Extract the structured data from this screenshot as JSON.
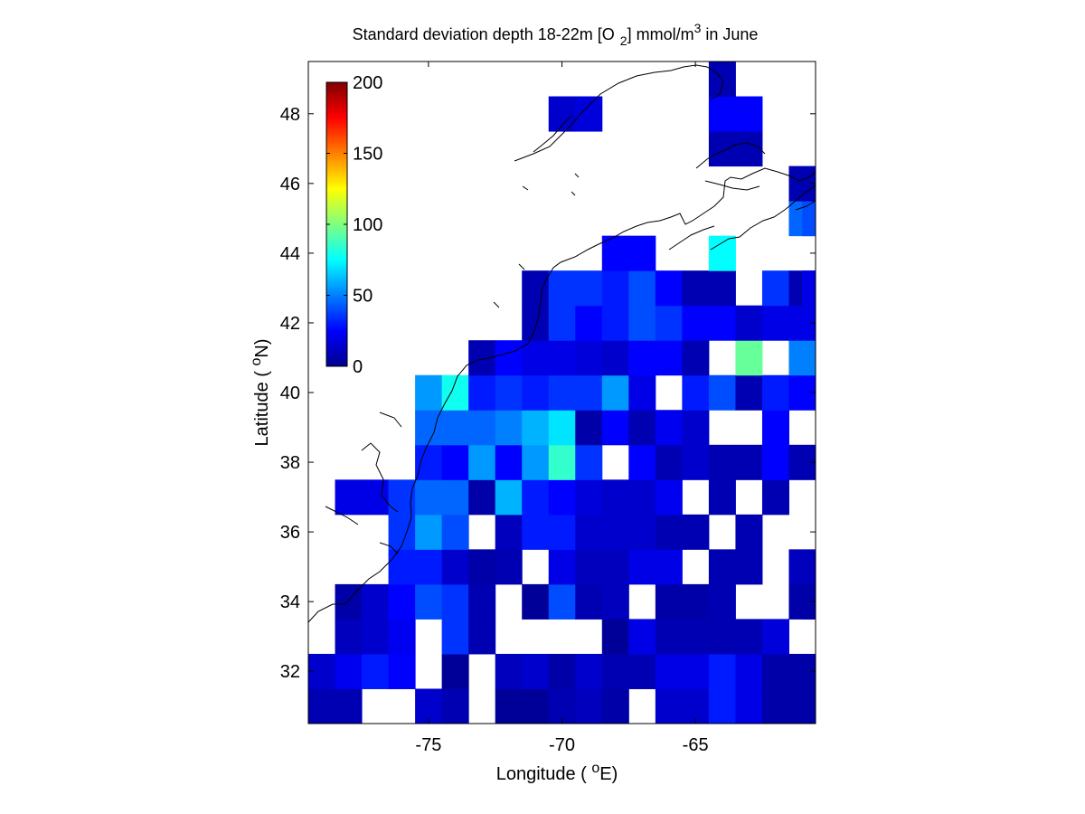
{
  "chart_data": {
    "type": "heatmap",
    "title": {
      "prefix": "Standard deviation depth 18-22m [O",
      "sub": "2",
      "mid": "] mmol/m",
      "sup": "3",
      "suffix": " in June"
    },
    "xlabel": {
      "text": "Longitude ( ",
      "sup": "o",
      "end": "E)"
    },
    "ylabel": {
      "text": "Latitude ( ",
      "sup": "o",
      "end": "N)"
    },
    "xlim": [
      -79.5,
      -60.5
    ],
    "ylim": [
      30.5,
      49.5
    ],
    "xticks": [
      -75,
      -70,
      -65
    ],
    "yticks": [
      32,
      34,
      36,
      38,
      40,
      42,
      44,
      46,
      48
    ],
    "colorbar": {
      "min": 0,
      "max": 200,
      "ticks": [
        0,
        50,
        100,
        150,
        200
      ],
      "colormap": "jet",
      "position": "top-left"
    },
    "cell_size_deg": 1,
    "cells": [
      [
        -79,
        31,
        10
      ],
      [
        -78,
        31,
        10
      ],
      [
        -75,
        31,
        15
      ],
      [
        -74,
        31,
        10
      ],
      [
        -72,
        31,
        5
      ],
      [
        -71,
        31,
        5
      ],
      [
        -70,
        31,
        10
      ],
      [
        -69,
        31,
        12
      ],
      [
        -68,
        31,
        8
      ],
      [
        -66,
        31,
        15
      ],
      [
        -65,
        31,
        15
      ],
      [
        -64,
        31,
        30
      ],
      [
        -63,
        31,
        20
      ],
      [
        -62,
        31,
        8
      ],
      [
        -61,
        31,
        8
      ],
      [
        -79,
        32,
        15
      ],
      [
        -78,
        32,
        22
      ],
      [
        -77,
        32,
        30
      ],
      [
        -76,
        32,
        25
      ],
      [
        -74,
        32,
        5
      ],
      [
        -72,
        32,
        12
      ],
      [
        -71,
        32,
        15
      ],
      [
        -70,
        32,
        8
      ],
      [
        -69,
        32,
        15
      ],
      [
        -68,
        32,
        10
      ],
      [
        -67,
        32,
        10
      ],
      [
        -66,
        32,
        20
      ],
      [
        -65,
        32,
        20
      ],
      [
        -64,
        32,
        30
      ],
      [
        -63,
        32,
        20
      ],
      [
        -62,
        32,
        8
      ],
      [
        -61,
        32,
        8
      ],
      [
        -78,
        33,
        12
      ],
      [
        -77,
        33,
        15
      ],
      [
        -76,
        33,
        22
      ],
      [
        -74,
        33,
        35
      ],
      [
        -73,
        33,
        10
      ],
      [
        -68,
        33,
        5
      ],
      [
        -67,
        33,
        20
      ],
      [
        -66,
        33,
        10
      ],
      [
        -65,
        33,
        10
      ],
      [
        -64,
        33,
        10
      ],
      [
        -63,
        33,
        10
      ],
      [
        -62,
        33,
        18
      ],
      [
        -78,
        34,
        8
      ],
      [
        -77,
        34,
        15
      ],
      [
        -76,
        34,
        25
      ],
      [
        -75,
        34,
        40
      ],
      [
        -74,
        34,
        35
      ],
      [
        -73,
        34,
        10
      ],
      [
        -71,
        34,
        5
      ],
      [
        -70,
        34,
        40
      ],
      [
        -69,
        34,
        10
      ],
      [
        -68,
        34,
        12
      ],
      [
        -66,
        34,
        8
      ],
      [
        -65,
        34,
        8
      ],
      [
        -64,
        34,
        10
      ],
      [
        -61,
        34,
        8
      ],
      [
        -60.5,
        34,
        8
      ],
      [
        -76,
        35,
        30
      ],
      [
        -75,
        35,
        30
      ],
      [
        -74,
        35,
        15
      ],
      [
        -73,
        35,
        8
      ],
      [
        -72,
        35,
        10
      ],
      [
        -70,
        35,
        20
      ],
      [
        -69,
        35,
        12
      ],
      [
        -68,
        35,
        12
      ],
      [
        -67,
        35,
        20
      ],
      [
        -66,
        35,
        20
      ],
      [
        -64,
        35,
        10
      ],
      [
        -63,
        35,
        10
      ],
      [
        -61,
        35,
        12
      ],
      [
        -76,
        36,
        35
      ],
      [
        -75,
        36,
        55
      ],
      [
        -74,
        36,
        40
      ],
      [
        -72,
        36,
        12
      ],
      [
        -71,
        36,
        30
      ],
      [
        -70,
        36,
        30
      ],
      [
        -69,
        36,
        15
      ],
      [
        -68,
        36,
        15
      ],
      [
        -67,
        36,
        15
      ],
      [
        -66,
        36,
        10
      ],
      [
        -65,
        36,
        10
      ],
      [
        -63,
        36,
        10
      ],
      [
        -78,
        37,
        20
      ],
      [
        -77,
        37,
        20
      ],
      [
        -76,
        37,
        35
      ],
      [
        -75,
        37,
        45
      ],
      [
        -74,
        37,
        45
      ],
      [
        -73,
        37,
        8
      ],
      [
        -72,
        37,
        60
      ],
      [
        -71,
        37,
        30
      ],
      [
        -70,
        37,
        25
      ],
      [
        -69,
        37,
        18
      ],
      [
        -68,
        37,
        15
      ],
      [
        -67,
        37,
        15
      ],
      [
        -66,
        37,
        22
      ],
      [
        -64,
        37,
        10
      ],
      [
        -62,
        37,
        10
      ],
      [
        -75,
        38,
        30
      ],
      [
        -74,
        38,
        25
      ],
      [
        -73,
        38,
        55
      ],
      [
        -72,
        38,
        25
      ],
      [
        -71,
        38,
        55
      ],
      [
        -70,
        38,
        85
      ],
      [
        -69,
        38,
        35
      ],
      [
        -67,
        38,
        25
      ],
      [
        -66,
        38,
        10
      ],
      [
        -65,
        38,
        15
      ],
      [
        -64,
        38,
        10
      ],
      [
        -63,
        38,
        10
      ],
      [
        -62,
        38,
        25
      ],
      [
        -61,
        38,
        10
      ],
      [
        -75,
        39,
        45
      ],
      [
        -74,
        39,
        45
      ],
      [
        -73,
        39,
        45
      ],
      [
        -72,
        39,
        50
      ],
      [
        -71,
        39,
        60
      ],
      [
        -70,
        39,
        70
      ],
      [
        -69,
        39,
        8
      ],
      [
        -68,
        39,
        25
      ],
      [
        -67,
        39,
        10
      ],
      [
        -66,
        39,
        22
      ],
      [
        -65,
        39,
        15
      ],
      [
        -62,
        39,
        25
      ],
      [
        -75,
        40,
        55
      ],
      [
        -74,
        40,
        78
      ],
      [
        -73,
        40,
        30
      ],
      [
        -72,
        40,
        35
      ],
      [
        -71,
        40,
        30
      ],
      [
        -70,
        40,
        35
      ],
      [
        -69,
        40,
        35
      ],
      [
        -68,
        40,
        55
      ],
      [
        -67,
        40,
        20
      ],
      [
        -65,
        40,
        30
      ],
      [
        -64,
        40,
        40
      ],
      [
        -63,
        40,
        10
      ],
      [
        -62,
        40,
        30
      ],
      [
        -61,
        40,
        25
      ],
      [
        -73,
        41,
        10
      ],
      [
        -72,
        41,
        25
      ],
      [
        -71,
        41,
        20
      ],
      [
        -70,
        41,
        20
      ],
      [
        -69,
        41,
        18
      ],
      [
        -68,
        41,
        15
      ],
      [
        -67,
        41,
        25
      ],
      [
        -66,
        41,
        25
      ],
      [
        -65,
        41,
        10
      ],
      [
        -63,
        41,
        95
      ],
      [
        -61,
        41,
        50
      ],
      [
        -71,
        42,
        10
      ],
      [
        -70,
        42,
        35
      ],
      [
        -69,
        42,
        25
      ],
      [
        -68,
        42,
        30
      ],
      [
        -67,
        42,
        40
      ],
      [
        -66,
        42,
        35
      ],
      [
        -65,
        42,
        25
      ],
      [
        -64,
        42,
        25
      ],
      [
        -63,
        42,
        15
      ],
      [
        -62,
        42,
        20
      ],
      [
        -61,
        42,
        20
      ],
      [
        -71,
        43,
        10
      ],
      [
        -70,
        43,
        35
      ],
      [
        -69,
        43,
        35
      ],
      [
        -68,
        43,
        30
      ],
      [
        -67,
        43,
        40
      ],
      [
        -66,
        43,
        25
      ],
      [
        -65,
        43,
        10
      ],
      [
        -64,
        43,
        10
      ],
      [
        -62,
        43,
        35
      ],
      [
        -61,
        43,
        10
      ],
      [
        -60.5,
        43,
        20
      ],
      [
        -68,
        44,
        25
      ],
      [
        -67,
        44,
        25
      ],
      [
        -64,
        44,
        75
      ],
      [
        -61,
        45,
        45
      ],
      [
        -60.5,
        45,
        40
      ],
      [
        -61,
        46,
        10
      ],
      [
        -64,
        47,
        10
      ],
      [
        -63,
        47,
        10
      ],
      [
        -70,
        48,
        15
      ],
      [
        -69,
        48,
        18
      ],
      [
        -64,
        48,
        25
      ],
      [
        -63,
        48,
        25
      ],
      [
        -64,
        49,
        10
      ]
    ]
  }
}
